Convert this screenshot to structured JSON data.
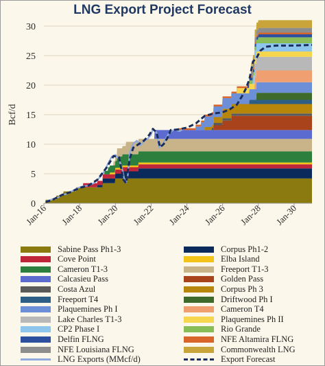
{
  "chart_data": {
    "type": "area",
    "title": "LNG Export Project Forecast",
    "ylabel": "Bcf/d",
    "xlabel": "",
    "ylim": [
      0,
      30
    ],
    "yticks": [
      0,
      5,
      10,
      15,
      20,
      25,
      30
    ],
    "xlim": [
      2016.0,
      2031.0
    ],
    "xticks": [
      {
        "value": 2016.0,
        "label": "Jan-16"
      },
      {
        "value": 2018.0,
        "label": "Jan-18"
      },
      {
        "value": 2020.0,
        "label": "Jan-20"
      },
      {
        "value": 2022.0,
        "label": "Jan-22"
      },
      {
        "value": 2024.0,
        "label": "Jan-24"
      },
      {
        "value": 2026.0,
        "label": "Jan-26"
      },
      {
        "value": 2028.0,
        "label": "Jan-28"
      },
      {
        "value": 2030.0,
        "label": "Jan-30"
      }
    ],
    "legend_position": "bottom",
    "stack_end": 2031.0,
    "series": [
      {
        "name": "Sabine Pass Ph1-3",
        "color": "#8b7a10",
        "steps": [
          [
            2016.1,
            0.6
          ],
          [
            2016.7,
            1.3
          ],
          [
            2017.1,
            2.0
          ],
          [
            2017.8,
            2.7
          ],
          [
            2019.3,
            3.4
          ],
          [
            2020.0,
            4.2
          ]
        ]
      },
      {
        "name": "Corpus Ph1-2",
        "color": "#0b2a5c",
        "steps": [
          [
            2019.0,
            0.4
          ],
          [
            2019.3,
            0.8
          ],
          [
            2020.4,
            1.2
          ],
          [
            2021.3,
            1.7
          ]
        ]
      },
      {
        "name": "Cove Point",
        "color": "#c0263a",
        "steps": [
          [
            2018.2,
            0.7
          ]
        ]
      },
      {
        "name": "Elba Island",
        "color": "#f2c318",
        "steps": [
          [
            2019.7,
            0.3
          ]
        ]
      },
      {
        "name": "Cameron T1-3",
        "color": "#2c7f3c",
        "steps": [
          [
            2019.4,
            0.6
          ],
          [
            2019.6,
            1.2
          ],
          [
            2020.1,
            1.9
          ]
        ]
      },
      {
        "name": "Freeport T1-3",
        "color": "#c9b48a",
        "steps": [
          [
            2019.9,
            0.7
          ],
          [
            2020.1,
            1.4
          ],
          [
            2020.6,
            2.1
          ]
        ]
      },
      {
        "name": "Calcasieu Pass",
        "color": "#5b6bd0",
        "steps": [
          [
            2022.2,
            1.5
          ]
        ]
      },
      {
        "name": "Golden Pass",
        "color": "#a8431c",
        "steps": [
          [
            2025.5,
            0.8
          ],
          [
            2026.0,
            1.6
          ],
          [
            2026.5,
            2.4
          ]
        ]
      },
      {
        "name": "Costa Azul",
        "color": "#5a5a5a",
        "steps": [
          [
            2025.4,
            0.4
          ]
        ]
      },
      {
        "name": "Corpus Ph 3",
        "color": "#b8860b",
        "steps": [
          [
            2025.0,
            0.5
          ],
          [
            2025.5,
            1.0
          ],
          [
            2026.0,
            1.6
          ]
        ]
      },
      {
        "name": "Freeport T4",
        "color": "#2d5f86",
        "steps": [
          [
            2027.5,
            0.7
          ]
        ]
      },
      {
        "name": "Driftwood Ph I",
        "color": "#3e6b2c",
        "steps": [
          [
            2027.9,
            1.2
          ]
        ]
      },
      {
        "name": "Plaquemines Ph I",
        "color": "#6d8fd8",
        "steps": [
          [
            2024.5,
            0.6
          ],
          [
            2024.8,
            1.3
          ],
          [
            2025.0,
            1.8
          ]
        ]
      },
      {
        "name": "Cameron T4",
        "color": "#f0a070",
        "steps": [
          [
            2027.8,
            2.0
          ]
        ]
      },
      {
        "name": "Lake Charles T1-3",
        "color": "#b8b8b8",
        "steps": [
          [
            2027.8,
            2.3
          ]
        ]
      },
      {
        "name": "Plaquemines Ph II",
        "color": "#f6d64e",
        "steps": [
          [
            2026.8,
            0.9
          ]
        ]
      },
      {
        "name": "CP2 Phase I",
        "color": "#8ec5ec",
        "steps": [
          [
            2027.7,
            1.4
          ]
        ]
      },
      {
        "name": "Rio Grande",
        "color": "#88bd58",
        "steps": [
          [
            2027.5,
            0.6
          ],
          [
            2028.0,
            1.0
          ]
        ]
      },
      {
        "name": "Delfin FLNG",
        "color": "#2c4fa0",
        "steps": [
          [
            2027.4,
            0.5
          ]
        ]
      },
      {
        "name": "NFE Altamira FLNG",
        "color": "#d8662a",
        "steps": [
          [
            2023.5,
            0.3
          ]
        ]
      },
      {
        "name": "NFE Louisiana FLNG",
        "color": "#8d8d8d",
        "steps": [
          [
            2027.6,
            0.8
          ]
        ]
      },
      {
        "name": "Commonwealth LNG",
        "color": "#c9a43a",
        "steps": [
          [
            2027.6,
            1.3
          ]
        ]
      }
    ],
    "lines": [
      {
        "name": "LNG Exports (MMcf/d)",
        "color": "#8fa9dd",
        "style": "solid",
        "points": [
          [
            2016.1,
            0.3
          ],
          [
            2016.4,
            0.6
          ],
          [
            2016.8,
            1.0
          ],
          [
            2017.0,
            1.4
          ],
          [
            2017.3,
            1.6
          ],
          [
            2017.6,
            2.1
          ],
          [
            2017.9,
            2.6
          ],
          [
            2018.2,
            2.9
          ],
          [
            2018.5,
            3.0
          ],
          [
            2018.8,
            3.4
          ],
          [
            2019.0,
            4.0
          ],
          [
            2019.2,
            4.6
          ],
          [
            2019.4,
            5.5
          ],
          [
            2019.6,
            6.8
          ],
          [
            2019.8,
            7.9
          ],
          [
            2020.0,
            8.2
          ],
          [
            2020.2,
            7.5
          ],
          [
            2020.4,
            5.6
          ],
          [
            2020.5,
            4.1
          ],
          [
            2020.6,
            3.5
          ],
          [
            2020.7,
            4.8
          ],
          [
            2020.8,
            8.5
          ],
          [
            2021.0,
            10.1
          ],
          [
            2021.2,
            10.6
          ],
          [
            2021.4,
            9.8
          ],
          [
            2021.6,
            10.5
          ],
          [
            2021.8,
            10.9
          ],
          [
            2022.0,
            11.6
          ],
          [
            2022.1,
            12.6
          ],
          [
            2022.3,
            12.0
          ],
          [
            2022.45,
            9.4
          ],
          [
            2022.6,
            9.8
          ],
          [
            2022.8,
            10.8
          ],
          [
            2023.0,
            11.9
          ],
          [
            2023.3,
            12.5
          ],
          [
            2023.6,
            12.2
          ],
          [
            2023.9,
            12.8
          ]
        ]
      },
      {
        "name": "Export Forecast",
        "color": "#1b2d5a",
        "style": "dashed",
        "points": [
          [
            2016.1,
            0.2
          ],
          [
            2016.5,
            0.6
          ],
          [
            2017.0,
            1.4
          ],
          [
            2017.5,
            1.9
          ],
          [
            2018.0,
            2.6
          ],
          [
            2018.5,
            3.0
          ],
          [
            2019.0,
            4.0
          ],
          [
            2019.5,
            6.0
          ],
          [
            2019.9,
            8.0
          ],
          [
            2020.2,
            7.8
          ],
          [
            2020.45,
            4.0
          ],
          [
            2020.6,
            3.4
          ],
          [
            2020.8,
            7.5
          ],
          [
            2021.0,
            9.4
          ],
          [
            2021.3,
            10.0
          ],
          [
            2021.6,
            10.6
          ],
          [
            2021.9,
            11.6
          ],
          [
            2022.1,
            12.6
          ],
          [
            2022.3,
            12.0
          ],
          [
            2022.5,
            9.5
          ],
          [
            2022.7,
            10.0
          ],
          [
            2022.9,
            11.0
          ],
          [
            2023.1,
            12.4
          ],
          [
            2023.5,
            12.5
          ],
          [
            2024.0,
            12.8
          ],
          [
            2024.5,
            13.5
          ],
          [
            2025.0,
            14.8
          ],
          [
            2025.5,
            15.2
          ],
          [
            2026.0,
            15.4
          ],
          [
            2026.4,
            15.9
          ],
          [
            2026.8,
            16.7
          ],
          [
            2027.1,
            18.2
          ],
          [
            2027.3,
            19.4
          ],
          [
            2027.5,
            21.0
          ],
          [
            2027.7,
            24.0
          ],
          [
            2027.9,
            24.6
          ],
          [
            2028.1,
            25.8
          ],
          [
            2028.4,
            26.5
          ],
          [
            2029.0,
            26.7
          ],
          [
            2030.0,
            26.7
          ],
          [
            2031.0,
            26.8
          ]
        ]
      }
    ]
  }
}
